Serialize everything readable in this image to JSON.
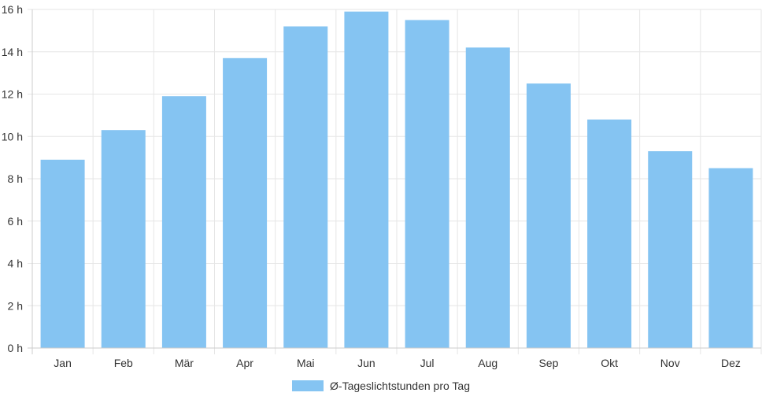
{
  "chart_data": {
    "type": "bar",
    "title": "",
    "xlabel": "",
    "ylabel": "",
    "categories": [
      "Jan",
      "Feb",
      "Mär",
      "Apr",
      "Mai",
      "Jun",
      "Jul",
      "Aug",
      "Sep",
      "Okt",
      "Nov",
      "Dez"
    ],
    "series": [
      {
        "name": "Ø-Tageslichtstunden pro Tag",
        "values": [
          8.9,
          10.3,
          11.9,
          13.7,
          15.2,
          15.9,
          15.5,
          14.2,
          12.5,
          10.8,
          9.3,
          8.5
        ],
        "color": "#85c4f2"
      }
    ],
    "ylim": [
      0,
      16
    ],
    "yticks": [
      "0 h",
      "2 h",
      "4 h",
      "6 h",
      "8 h",
      "10 h",
      "12 h",
      "14 h",
      "16 h"
    ],
    "grid": true,
    "legend_position": "bottom"
  }
}
